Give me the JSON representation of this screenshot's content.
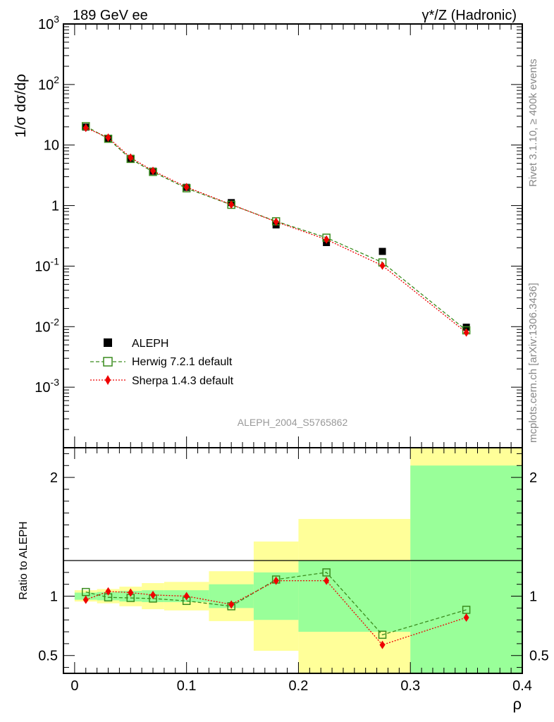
{
  "header": {
    "left": "189 GeV ee",
    "right": "γ*/Z (Hadronic)"
  },
  "side_labels": {
    "rivet": "Rivet 3.1.10, ≥ 400k events",
    "mcplots": "mcplots.cern.ch [arXiv:1306.3436]"
  },
  "analysis_id": "ALEPH_2004_S5765862",
  "colors": {
    "data": "#000000",
    "herwig": "#3a8c1e",
    "sherpa": "#ee0000",
    "band_inner": "#99ff99",
    "band_outer": "#ffff99"
  },
  "chart_data": [
    {
      "type": "scatter",
      "panel": "main",
      "ylabel": "1/σ dσ/dρ",
      "xlabel": "ρ",
      "yscale": "log",
      "ylim": [
        0.0001,
        1000
      ],
      "xlim": [
        -0.01,
        0.4
      ],
      "y_tick_labels": [
        "10^-3",
        "10^-2",
        "10^-1",
        "1",
        "10",
        "10^2",
        "10^3"
      ],
      "legend": {
        "placement": "lower-left",
        "entries": [
          "ALEPH",
          "Herwig 7.2.1 default",
          "Sherpa 1.4.3 default"
        ]
      },
      "series": [
        {
          "name": "ALEPH",
          "style": "marker-square",
          "x": [
            0.01,
            0.03,
            0.05,
            0.07,
            0.1,
            0.14,
            0.18,
            0.225,
            0.275,
            0.35
          ],
          "y": [
            19.8,
            12.8,
            6.0,
            3.7,
            2.0,
            1.12,
            0.48,
            0.245,
            0.175,
            0.0098
          ]
        },
        {
          "name": "Herwig 7.2.1 default",
          "style": "dashed-open-square",
          "x": [
            0.01,
            0.03,
            0.05,
            0.07,
            0.1,
            0.14,
            0.18,
            0.225,
            0.275,
            0.35
          ],
          "y": [
            20.5,
            12.7,
            5.9,
            3.6,
            1.93,
            1.03,
            0.55,
            0.295,
            0.115,
            0.0087
          ]
        },
        {
          "name": "Sherpa 1.4.3 default",
          "style": "dotted-diamond",
          "x": [
            0.01,
            0.03,
            0.05,
            0.07,
            0.1,
            0.14,
            0.18,
            0.225,
            0.275,
            0.35
          ],
          "y": [
            19.2,
            13.3,
            6.2,
            3.75,
            2.02,
            1.04,
            0.54,
            0.275,
            0.102,
            0.008
          ]
        }
      ]
    },
    {
      "type": "line",
      "panel": "ratio",
      "ylabel": "Ratio to ALEPH",
      "xlabel": "ρ",
      "ylim": [
        0.35,
        2.25
      ],
      "xlim": [
        -0.01,
        0.4
      ],
      "y_tick_labels": [
        "0.5",
        "1",
        "2"
      ],
      "x_tick_labels": [
        "0",
        "0.1",
        "0.2",
        "0.3",
        "0.4"
      ],
      "bands": [
        {
          "xlo": 0.0,
          "xhi": 0.02,
          "inner": [
            0.97,
            1.03
          ],
          "outer": [
            0.955,
            1.05
          ]
        },
        {
          "xlo": 0.02,
          "xhi": 0.04,
          "inner": [
            0.965,
            1.035
          ],
          "outer": [
            0.94,
            1.06
          ]
        },
        {
          "xlo": 0.04,
          "xhi": 0.06,
          "inner": [
            0.955,
            1.045
          ],
          "outer": [
            0.915,
            1.08
          ]
        },
        {
          "xlo": 0.06,
          "xhi": 0.08,
          "inner": [
            0.95,
            1.05
          ],
          "outer": [
            0.89,
            1.11
          ]
        },
        {
          "xlo": 0.08,
          "xhi": 0.12,
          "inner": [
            0.95,
            1.05
          ],
          "outer": [
            0.88,
            1.12
          ]
        },
        {
          "xlo": 0.12,
          "xhi": 0.16,
          "inner": [
            0.9,
            1.1
          ],
          "outer": [
            0.79,
            1.21
          ]
        },
        {
          "xlo": 0.16,
          "xhi": 0.2,
          "inner": [
            0.8,
            1.2
          ],
          "outer": [
            0.54,
            1.46
          ]
        },
        {
          "xlo": 0.2,
          "xhi": 0.3,
          "inner": [
            0.7,
            1.3
          ],
          "outer": [
            0.35,
            1.65
          ]
        },
        {
          "xlo": 0.3,
          "xhi": 0.4,
          "inner": [
            0.35,
            2.1
          ],
          "outer": [
            0.35,
            2.25
          ]
        }
      ],
      "series": [
        {
          "name": "Herwig 7.2.1 default",
          "style": "dashed-open-square",
          "x": [
            0.01,
            0.03,
            0.05,
            0.07,
            0.1,
            0.14,
            0.18,
            0.225,
            0.275,
            0.35
          ],
          "y": [
            1.035,
            0.99,
            0.985,
            0.98,
            0.96,
            0.915,
            1.14,
            1.2,
            0.675,
            0.885
          ]
        },
        {
          "name": "Sherpa 1.4.3 default",
          "style": "dotted-diamond",
          "x": [
            0.01,
            0.03,
            0.05,
            0.07,
            0.1,
            0.14,
            0.18,
            0.225,
            0.275,
            0.35
          ],
          "y": [
            0.97,
            1.04,
            1.03,
            1.01,
            1.0,
            0.93,
            1.13,
            1.13,
            0.59,
            0.82
          ]
        }
      ]
    }
  ]
}
